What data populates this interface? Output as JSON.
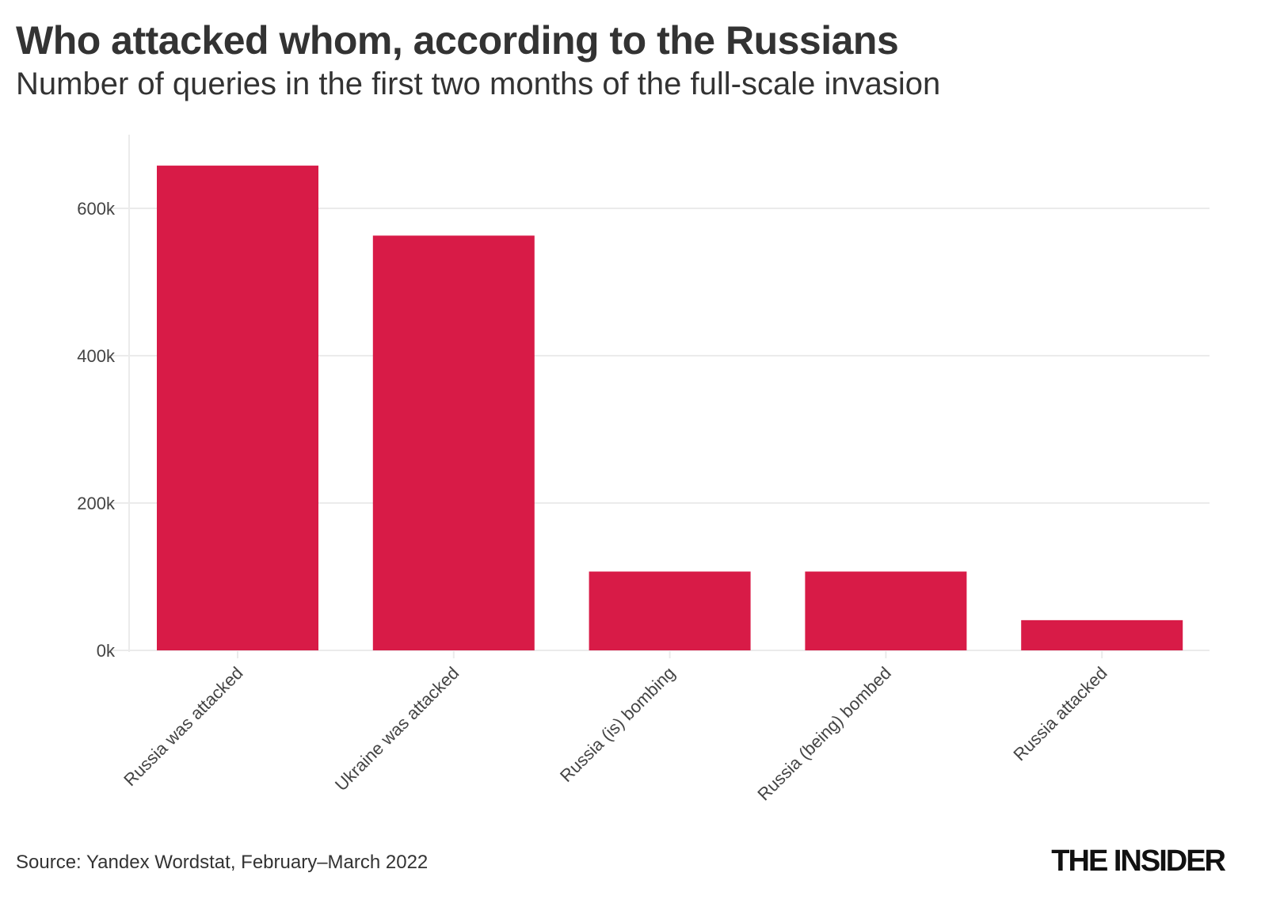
{
  "title": "Who attacked whom, according to the Russians",
  "subtitle": "Number of queries in the first two months of the full-scale invasion",
  "source": "Source: Yandex Wordstat, February–March 2022",
  "logo": "THE INSIDER",
  "colors": {
    "bar": "#d81b47",
    "grid": "#ebebeb",
    "text": "#333333"
  },
  "chart_data": {
    "type": "bar",
    "title": "Who attacked whom, according to the Russians",
    "subtitle": "Number of queries in the first two months of the full-scale invasion",
    "categories": [
      "Russia was attacked",
      "Ukraine was attacked",
      "Russia (is) bombing",
      "Russia (being) bombed",
      "Russia attacked"
    ],
    "values": [
      658000,
      563000,
      107000,
      107000,
      41000
    ],
    "ylim": [
      0,
      700000
    ],
    "yticks": [
      0,
      200000,
      400000,
      600000
    ],
    "ytick_labels": [
      "0k",
      "200k",
      "400k",
      "600k"
    ],
    "grid": true,
    "xlabel": "",
    "ylabel": ""
  }
}
